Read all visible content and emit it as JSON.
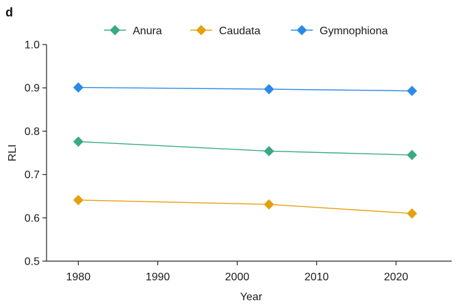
{
  "panel_label": "d",
  "chart_data": {
    "type": "line",
    "title": "",
    "xlabel": "Year",
    "ylabel": "RLI",
    "xlim": [
      1976,
      2027
    ],
    "ylim": [
      0.5,
      1.0
    ],
    "x_ticks": [
      1980,
      1990,
      2000,
      2010,
      2020
    ],
    "x_tick_labels": [
      "1980",
      "1990",
      "2000",
      "2010",
      "2020"
    ],
    "y_ticks": [
      0.5,
      0.6,
      0.7,
      0.8,
      0.9,
      1.0
    ],
    "y_tick_labels": [
      "0.5",
      "0.6",
      "0.7",
      "0.8",
      "0.9",
      "1.0"
    ],
    "grid": false,
    "legend_position": "top-center",
    "series": [
      {
        "name": "Anura",
        "color": "#3aaa85",
        "marker": "diamond",
        "x": [
          1980,
          2004,
          2022
        ],
        "y": [
          0.776,
          0.754,
          0.745
        ]
      },
      {
        "name": "Caudata",
        "color": "#e5a00d",
        "marker": "diamond",
        "x": [
          1980,
          2004,
          2022
        ],
        "y": [
          0.641,
          0.631,
          0.61
        ]
      },
      {
        "name": "Gymnophiona",
        "color": "#2b8ae8",
        "marker": "diamond",
        "x": [
          1980,
          2004,
          2022
        ],
        "y": [
          0.901,
          0.897,
          0.893
        ]
      }
    ]
  }
}
